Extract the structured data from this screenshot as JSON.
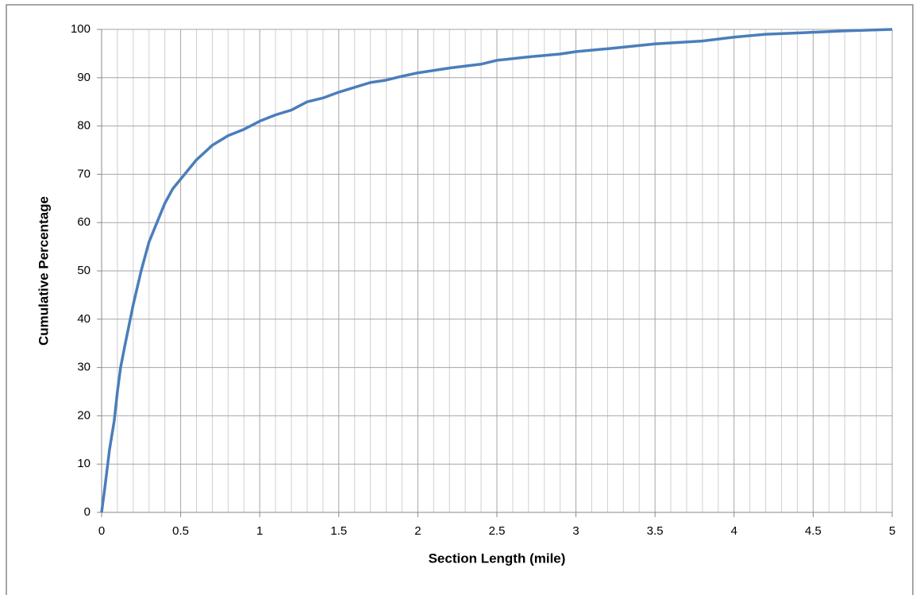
{
  "chart_data": {
    "type": "line",
    "x_label": "Section Length (mile)",
    "y_label": "Cumulative Percentage",
    "x": [
      0,
      0.02,
      0.05,
      0.08,
      0.1,
      0.12,
      0.15,
      0.2,
      0.25,
      0.3,
      0.35,
      0.4,
      0.45,
      0.5,
      0.6,
      0.7,
      0.8,
      0.9,
      1.0,
      1.1,
      1.2,
      1.3,
      1.4,
      1.5,
      1.6,
      1.7,
      1.8,
      1.9,
      2.0,
      2.2,
      2.4,
      2.5,
      2.7,
      2.9,
      3.0,
      3.2,
      3.5,
      3.8,
      4.0,
      4.2,
      4.5,
      4.7,
      5.0
    ],
    "values": [
      0,
      5,
      13,
      19,
      25,
      30,
      35,
      43,
      50,
      56,
      60,
      64,
      67,
      69,
      73,
      76,
      78,
      79.3,
      81,
      82.3,
      83.3,
      85,
      85.8,
      87,
      88,
      89,
      89.5,
      90.3,
      91,
      92,
      92.8,
      93.6,
      94.3,
      94.9,
      95.4,
      96,
      97,
      97.6,
      98.4,
      99,
      99.4,
      99.7,
      100
    ],
    "color": "#4a7ebb",
    "xlim": [
      0,
      5
    ],
    "xticks": [
      0,
      0.5,
      1,
      1.5,
      2,
      2.5,
      3,
      3.5,
      4,
      4.5,
      5
    ],
    "ylim": [
      0,
      100
    ],
    "yticks": [
      0,
      10,
      20,
      30,
      40,
      50,
      60,
      70,
      80,
      90,
      100
    ],
    "grid": true,
    "minor_grid": true
  }
}
